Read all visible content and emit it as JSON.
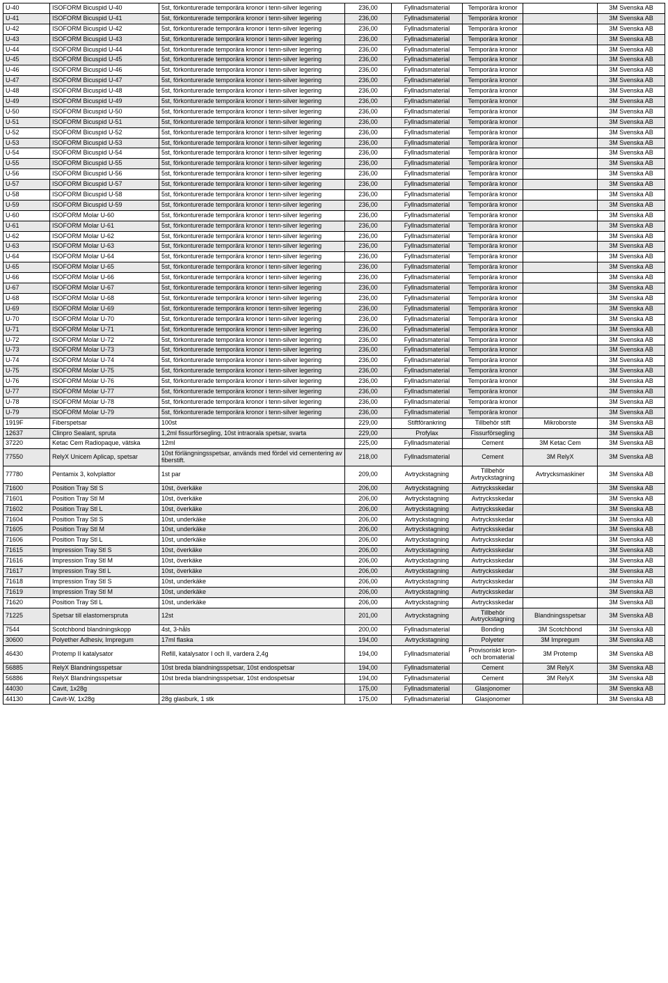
{
  "columns": [
    "c0",
    "c1",
    "c2",
    "c3",
    "c4",
    "c5",
    "c6",
    "c7"
  ],
  "widths": [
    60,
    150,
    260,
    60,
    95,
    80,
    100,
    90
  ],
  "rows": [
    {
      "gray": false,
      "cells": [
        "U-40",
        "ISOFORM Bicuspid U-40",
        "5st, förkonturerade temporära kronor i tenn-silver legering",
        "236,00",
        "Fyllnadsmaterial",
        "Temporära kronor",
        "",
        "3M Svenska AB"
      ]
    },
    {
      "gray": true,
      "cells": [
        "U-41",
        "ISOFORM Bicuspid U-41",
        "5st, förkonturerade temporära kronor i tenn-silver legering",
        "236,00",
        "Fyllnadsmaterial",
        "Temporära kronor",
        "",
        "3M Svenska AB"
      ]
    },
    {
      "gray": false,
      "cells": [
        "U-42",
        "ISOFORM Bicuspid U-42",
        "5st, förkonturerade temporära kronor i tenn-silver legering",
        "236,00",
        "Fyllnadsmaterial",
        "Temporära kronor",
        "",
        "3M Svenska AB"
      ]
    },
    {
      "gray": true,
      "cells": [
        "U-43",
        "ISOFORM Bicuspid U-43",
        "5st, förkonturerade temporära kronor i tenn-silver legering",
        "236,00",
        "Fyllnadsmaterial",
        "Temporära kronor",
        "",
        "3M Svenska AB"
      ]
    },
    {
      "gray": false,
      "cells": [
        "U-44",
        "ISOFORM Bicuspid U-44",
        "5st, förkonturerade temporära kronor i tenn-silver legering",
        "236,00",
        "Fyllnadsmaterial",
        "Temporära kronor",
        "",
        "3M Svenska AB"
      ]
    },
    {
      "gray": true,
      "cells": [
        "U-45",
        "ISOFORM Bicuspid U-45",
        "5st, förkonturerade temporära kronor i tenn-silver legering",
        "236,00",
        "Fyllnadsmaterial",
        "Temporära kronor",
        "",
        "3M Svenska AB"
      ]
    },
    {
      "gray": false,
      "cells": [
        "U-46",
        "ISOFORM Bicuspid U-46",
        "5st, förkonturerade temporära kronor i tenn-silver legering",
        "236,00",
        "Fyllnadsmaterial",
        "Temporära kronor",
        "",
        "3M Svenska AB"
      ]
    },
    {
      "gray": true,
      "cells": [
        "U-47",
        "ISOFORM Bicuspid U-47",
        "5st, förkonturerade temporära kronor i tenn-silver legering",
        "236,00",
        "Fyllnadsmaterial",
        "Temporära kronor",
        "",
        "3M Svenska AB"
      ]
    },
    {
      "gray": false,
      "cells": [
        "U-48",
        "ISOFORM Bicuspid U-48",
        "5st, förkonturerade temporära kronor i tenn-silver legering",
        "236,00",
        "Fyllnadsmaterial",
        "Temporära kronor",
        "",
        "3M Svenska AB"
      ]
    },
    {
      "gray": true,
      "cells": [
        "U-49",
        "ISOFORM Bicuspid U-49",
        "5st, förkonturerade temporära kronor i tenn-silver legering",
        "236,00",
        "Fyllnadsmaterial",
        "Temporära kronor",
        "",
        "3M Svenska AB"
      ]
    },
    {
      "gray": false,
      "cells": [
        "U-50",
        "ISOFORM Bicuspid U-50",
        "5st, förkonturerade temporära kronor i tenn-silver legering",
        "236,00",
        "Fyllnadsmaterial",
        "Temporära kronor",
        "",
        "3M Svenska AB"
      ]
    },
    {
      "gray": true,
      "cells": [
        "U-51",
        "ISOFORM Bicuspid U-51",
        "5st, förkonturerade temporära kronor i tenn-silver legering",
        "236,00",
        "Fyllnadsmaterial",
        "Temporära kronor",
        "",
        "3M Svenska AB"
      ]
    },
    {
      "gray": false,
      "cells": [
        "U-52",
        "ISOFORM Bicuspid U-52",
        "5st, förkonturerade temporära kronor i tenn-silver legering",
        "236,00",
        "Fyllnadsmaterial",
        "Temporära kronor",
        "",
        "3M Svenska AB"
      ]
    },
    {
      "gray": true,
      "cells": [
        "U-53",
        "ISOFORM Bicuspid U-53",
        "5st, förkonturerade temporära kronor i tenn-silver legering",
        "236,00",
        "Fyllnadsmaterial",
        "Temporära kronor",
        "",
        "3M Svenska AB"
      ]
    },
    {
      "gray": false,
      "cells": [
        "U-54",
        "ISOFORM Bicuspid U-54",
        "5st, förkonturerade temporära kronor i tenn-silver legering",
        "236,00",
        "Fyllnadsmaterial",
        "Temporära kronor",
        "",
        "3M Svenska AB"
      ]
    },
    {
      "gray": true,
      "cells": [
        "U-55",
        "ISOFORM Bicuspid U-55",
        "5st, förkonturerade temporära kronor i tenn-silver legering",
        "236,00",
        "Fyllnadsmaterial",
        "Temporära kronor",
        "",
        "3M Svenska AB"
      ]
    },
    {
      "gray": false,
      "cells": [
        "U-56",
        "ISOFORM Bicuspid U-56",
        "5st, förkonturerade temporära kronor i tenn-silver legering",
        "236,00",
        "Fyllnadsmaterial",
        "Temporära kronor",
        "",
        "3M Svenska AB"
      ]
    },
    {
      "gray": true,
      "cells": [
        "U-57",
        "ISOFORM Bicuspid U-57",
        "5st, förkonturerade temporära kronor i tenn-silver legering",
        "236,00",
        "Fyllnadsmaterial",
        "Temporära kronor",
        "",
        "3M Svenska AB"
      ]
    },
    {
      "gray": false,
      "cells": [
        "U-58",
        "ISOFORM Bicuspid U-58",
        "5st, förkonturerade temporära kronor i tenn-silver legering",
        "236,00",
        "Fyllnadsmaterial",
        "Temporära kronor",
        "",
        "3M Svenska AB"
      ]
    },
    {
      "gray": true,
      "cells": [
        "U-59",
        "ISOFORM Bicuspid U-59",
        "5st, förkonturerade temporära kronor i tenn-silver legering",
        "236,00",
        "Fyllnadsmaterial",
        "Temporära kronor",
        "",
        "3M Svenska AB"
      ]
    },
    {
      "gray": false,
      "cells": [
        "U-60",
        "ISOFORM Molar U-60",
        "5st, förkonturerade temporära kronor i tenn-silver legering",
        "236,00",
        "Fyllnadsmaterial",
        "Temporära kronor",
        "",
        "3M Svenska AB"
      ]
    },
    {
      "gray": true,
      "cells": [
        "U-61",
        "ISOFORM Molar U-61",
        "5st, förkonturerade temporära kronor i tenn-silver legering",
        "236,00",
        "Fyllnadsmaterial",
        "Temporära kronor",
        "",
        "3M Svenska AB"
      ]
    },
    {
      "gray": false,
      "cells": [
        "U-62",
        "ISOFORM Molar U-62",
        "5st, förkonturerade temporära kronor i tenn-silver legering",
        "236,00",
        "Fyllnadsmaterial",
        "Temporära kronor",
        "",
        "3M Svenska AB"
      ]
    },
    {
      "gray": true,
      "cells": [
        "U-63",
        "ISOFORM Molar U-63",
        "5st, förkonturerade temporära kronor i tenn-silver legering",
        "236,00",
        "Fyllnadsmaterial",
        "Temporära kronor",
        "",
        "3M Svenska AB"
      ]
    },
    {
      "gray": false,
      "cells": [
        "U-64",
        "ISOFORM Molar U-64",
        "5st, förkonturerade temporära kronor i tenn-silver legering",
        "236,00",
        "Fyllnadsmaterial",
        "Temporära kronor",
        "",
        "3M Svenska AB"
      ]
    },
    {
      "gray": true,
      "cells": [
        "U-65",
        "ISOFORM Molar U-65",
        "5st, förkonturerade temporära kronor i tenn-silver legering",
        "236,00",
        "Fyllnadsmaterial",
        "Temporära kronor",
        "",
        "3M Svenska AB"
      ]
    },
    {
      "gray": false,
      "cells": [
        "U-66",
        "ISOFORM Molar U-66",
        "5st, förkonturerade temporära kronor i tenn-silver legering",
        "236,00",
        "Fyllnadsmaterial",
        "Temporära kronor",
        "",
        "3M Svenska AB"
      ]
    },
    {
      "gray": true,
      "cells": [
        "U-67",
        "ISOFORM Molar U-67",
        "5st, förkonturerade temporära kronor i tenn-silver legering",
        "236,00",
        "Fyllnadsmaterial",
        "Temporära kronor",
        "",
        "3M Svenska AB"
      ]
    },
    {
      "gray": false,
      "cells": [
        "U-68",
        "ISOFORM Molar U-68",
        "5st, förkonturerade temporära kronor i tenn-silver legering",
        "236,00",
        "Fyllnadsmaterial",
        "Temporära kronor",
        "",
        "3M Svenska AB"
      ]
    },
    {
      "gray": true,
      "cells": [
        "U-69",
        "ISOFORM Molar U-69",
        "5st, förkonturerade temporära kronor i tenn-silver legering",
        "236,00",
        "Fyllnadsmaterial",
        "Temporära kronor",
        "",
        "3M Svenska AB"
      ]
    },
    {
      "gray": false,
      "cells": [
        "U-70",
        "ISOFORM Molar U-70",
        "5st, förkonturerade temporära kronor i tenn-silver legering",
        "236,00",
        "Fyllnadsmaterial",
        "Temporära kronor",
        "",
        "3M Svenska AB"
      ]
    },
    {
      "gray": true,
      "cells": [
        "U-71",
        "ISOFORM Molar U-71",
        "5st, förkonturerade temporära kronor i tenn-silver legering",
        "236,00",
        "Fyllnadsmaterial",
        "Temporära kronor",
        "",
        "3M Svenska AB"
      ]
    },
    {
      "gray": false,
      "cells": [
        "U-72",
        "ISOFORM Molar U-72",
        "5st, förkonturerade temporära kronor i tenn-silver legering",
        "236,00",
        "Fyllnadsmaterial",
        "Temporära kronor",
        "",
        "3M Svenska AB"
      ]
    },
    {
      "gray": true,
      "cells": [
        "U-73",
        "ISOFORM Molar U-73",
        "5st, förkonturerade temporära kronor i tenn-silver legering",
        "236,00",
        "Fyllnadsmaterial",
        "Temporära kronor",
        "",
        "3M Svenska AB"
      ]
    },
    {
      "gray": false,
      "cells": [
        "U-74",
        "ISOFORM Molar U-74",
        "5st, förkonturerade temporära kronor i tenn-silver legering",
        "236,00",
        "Fyllnadsmaterial",
        "Temporära kronor",
        "",
        "3M Svenska AB"
      ]
    },
    {
      "gray": true,
      "cells": [
        "U-75",
        "ISOFORM Molar U-75",
        "5st, förkonturerade temporära kronor i tenn-silver legering",
        "236,00",
        "Fyllnadsmaterial",
        "Temporära kronor",
        "",
        "3M Svenska AB"
      ]
    },
    {
      "gray": false,
      "cells": [
        "U-76",
        "ISOFORM Molar U-76",
        "5st, förkonturerade temporära kronor i tenn-silver legering",
        "236,00",
        "Fyllnadsmaterial",
        "Temporära kronor",
        "",
        "3M Svenska AB"
      ]
    },
    {
      "gray": true,
      "cells": [
        "U-77",
        "ISOFORM Molar U-77",
        "5st, förkonturerade temporära kronor i tenn-silver legering",
        "236,00",
        "Fyllnadsmaterial",
        "Temporära kronor",
        "",
        "3M Svenska AB"
      ]
    },
    {
      "gray": false,
      "cells": [
        "U-78",
        "ISOFORM Molar U-78",
        "5st, förkonturerade temporära kronor i tenn-silver legering",
        "236,00",
        "Fyllnadsmaterial",
        "Temporära kronor",
        "",
        "3M Svenska AB"
      ]
    },
    {
      "gray": true,
      "cells": [
        "U-79",
        "ISOFORM Molar U-79",
        "5st, förkonturerade temporära kronor i tenn-silver legering",
        "236,00",
        "Fyllnadsmaterial",
        "Temporära kronor",
        "",
        "3M Svenska AB"
      ]
    },
    {
      "gray": false,
      "cells": [
        "1919F",
        "Fiberspetsar",
        "100st",
        "229,00",
        "Stiftförankring",
        "Tillbehör stift",
        "Mikroborste",
        "3M Svenska AB"
      ]
    },
    {
      "gray": true,
      "cells": [
        "12637",
        "Clinpro Sealant, spruta",
        "1,2ml fissurförsegling, 10st intraorala spetsar, svarta",
        "229,00",
        "Profylax",
        "Fissurförsegling",
        "",
        "3M Svenska AB"
      ]
    },
    {
      "gray": false,
      "cells": [
        "37220",
        "Ketac Cem Radiopaque, vätska",
        "12ml",
        "225,00",
        "Fyllnadsmaterial",
        "Cement",
        "3M Ketac Cem",
        "3M Svenska AB"
      ]
    },
    {
      "gray": true,
      "cells": [
        "77550",
        "RelyX Unicem Aplicap, spetsar",
        "10st förlängningsspetsar, används med fördel vid cementering av fiberstift.",
        "218,00",
        "Fyllnadsmaterial",
        "Cement",
        "3M RelyX",
        "3M Svenska AB"
      ]
    },
    {
      "gray": false,
      "cells": [
        "77780",
        "Pentamix 3, kolvplattor",
        "1st par",
        "209,00",
        "Avtryckstagning",
        "Tillbehör Avtryckstagning",
        "Avtrycksmaskiner",
        "3M Svenska AB"
      ]
    },
    {
      "gray": true,
      "cells": [
        "71600",
        "Position Tray Stl S",
        "10st, överkäke",
        "206,00",
        "Avtryckstagning",
        "Avtrycksskedar",
        "",
        "3M Svenska AB"
      ]
    },
    {
      "gray": false,
      "cells": [
        "71601",
        "Position Tray Stl M",
        "10st, överkäke",
        "206,00",
        "Avtryckstagning",
        "Avtrycksskedar",
        "",
        "3M Svenska AB"
      ]
    },
    {
      "gray": true,
      "cells": [
        "71602",
        "Position Tray Stl L",
        "10st, överkäke",
        "206,00",
        "Avtryckstagning",
        "Avtrycksskedar",
        "",
        "3M Svenska AB"
      ]
    },
    {
      "gray": false,
      "cells": [
        "71604",
        "Position Tray Stl S",
        "10st, underkäke",
        "206,00",
        "Avtryckstagning",
        "Avtrycksskedar",
        "",
        "3M Svenska AB"
      ]
    },
    {
      "gray": true,
      "cells": [
        "71605",
        "Position Tray Stl M",
        "10st, underkäke",
        "206,00",
        "Avtryckstagning",
        "Avtrycksskedar",
        "",
        "3M Svenska AB"
      ]
    },
    {
      "gray": false,
      "cells": [
        "71606",
        "Position Tray Stl L",
        "10st, underkäke",
        "206,00",
        "Avtryckstagning",
        "Avtrycksskedar",
        "",
        "3M Svenska AB"
      ]
    },
    {
      "gray": true,
      "cells": [
        "71615",
        "Impression Tray Stl S",
        "10st, överkäke",
        "206,00",
        "Avtryckstagning",
        "Avtrycksskedar",
        "",
        "3M Svenska AB"
      ]
    },
    {
      "gray": false,
      "cells": [
        "71616",
        "Impression Tray Stl M",
        "10st, överkäke",
        "206,00",
        "Avtryckstagning",
        "Avtrycksskedar",
        "",
        "3M Svenska AB"
      ]
    },
    {
      "gray": true,
      "cells": [
        "71617",
        "Impression Tray Stl L",
        "10st, överkäke",
        "206,00",
        "Avtryckstagning",
        "Avtrycksskedar",
        "",
        "3M Svenska AB"
      ]
    },
    {
      "gray": false,
      "cells": [
        "71618",
        "Impression Tray Stl S",
        "10st, underkäke",
        "206,00",
        "Avtryckstagning",
        "Avtrycksskedar",
        "",
        "3M Svenska AB"
      ]
    },
    {
      "gray": true,
      "cells": [
        "71619",
        "Impression Tray Stl M",
        "10st, underkäke",
        "206,00",
        "Avtryckstagning",
        "Avtrycksskedar",
        "",
        "3M Svenska AB"
      ]
    },
    {
      "gray": false,
      "cells": [
        "71620",
        "Position Tray Stl L",
        "10st, underkäke",
        "206,00",
        "Avtryckstagning",
        "Avtrycksskedar",
        "",
        "3M Svenska AB"
      ]
    },
    {
      "gray": true,
      "cells": [
        "71225",
        "Spetsar till elastomerspruta",
        "12st",
        "201,00",
        "Avtryckstagning",
        "Tillbehör Avtryckstagning",
        "Blandningsspetsar",
        "3M Svenska AB"
      ]
    },
    {
      "gray": false,
      "cells": [
        "7544",
        "Scotchbond blandningskopp",
        "4st, 3-håls",
        "200,00",
        "Fyllnadsmaterial",
        "Bonding",
        "3M Scotchbond",
        "3M Svenska AB"
      ]
    },
    {
      "gray": true,
      "cells": [
        "30600",
        "Polyether Adhesiv, Impregum",
        "17ml flaska",
        "194,00",
        "Avtryckstagning",
        "Polyeter",
        "3M Impregum",
        "3M Svenska AB"
      ]
    },
    {
      "gray": false,
      "cells": [
        "46430",
        "Protemp II katalysator",
        "Refill, katalysator I och II, vardera 2,4g",
        "194,00",
        "Fyllnadsmaterial",
        "Provisoriskt kron-och bromaterial",
        "3M Protemp",
        "3M Svenska AB"
      ]
    },
    {
      "gray": true,
      "cells": [
        "56885",
        "RelyX Blandningsspetsar",
        "10st breda blandningsspetsar, 10st endospetsar",
        "194,00",
        "Fyllnadsmaterial",
        "Cement",
        "3M RelyX",
        "3M Svenska AB"
      ]
    },
    {
      "gray": false,
      "cells": [
        "56886",
        "RelyX Blandningsspetsar",
        "10st breda blandningsspetsar, 10st endospetsar",
        "194,00",
        "Fyllnadsmaterial",
        "Cement",
        "3M RelyX",
        "3M Svenska AB"
      ]
    },
    {
      "gray": true,
      "cells": [
        "44030",
        "Cavit, 1x28g",
        "",
        "175,00",
        "Fyllnadsmaterial",
        "Glasjonomer",
        "",
        "3M Svenska AB"
      ]
    },
    {
      "gray": false,
      "cells": [
        "44130",
        "Cavit-W, 1x28g",
        "28g glasburk, 1 stk",
        "175,00",
        "Fyllnadsmaterial",
        "Glasjonomer",
        "",
        "3M Svenska AB"
      ]
    }
  ]
}
